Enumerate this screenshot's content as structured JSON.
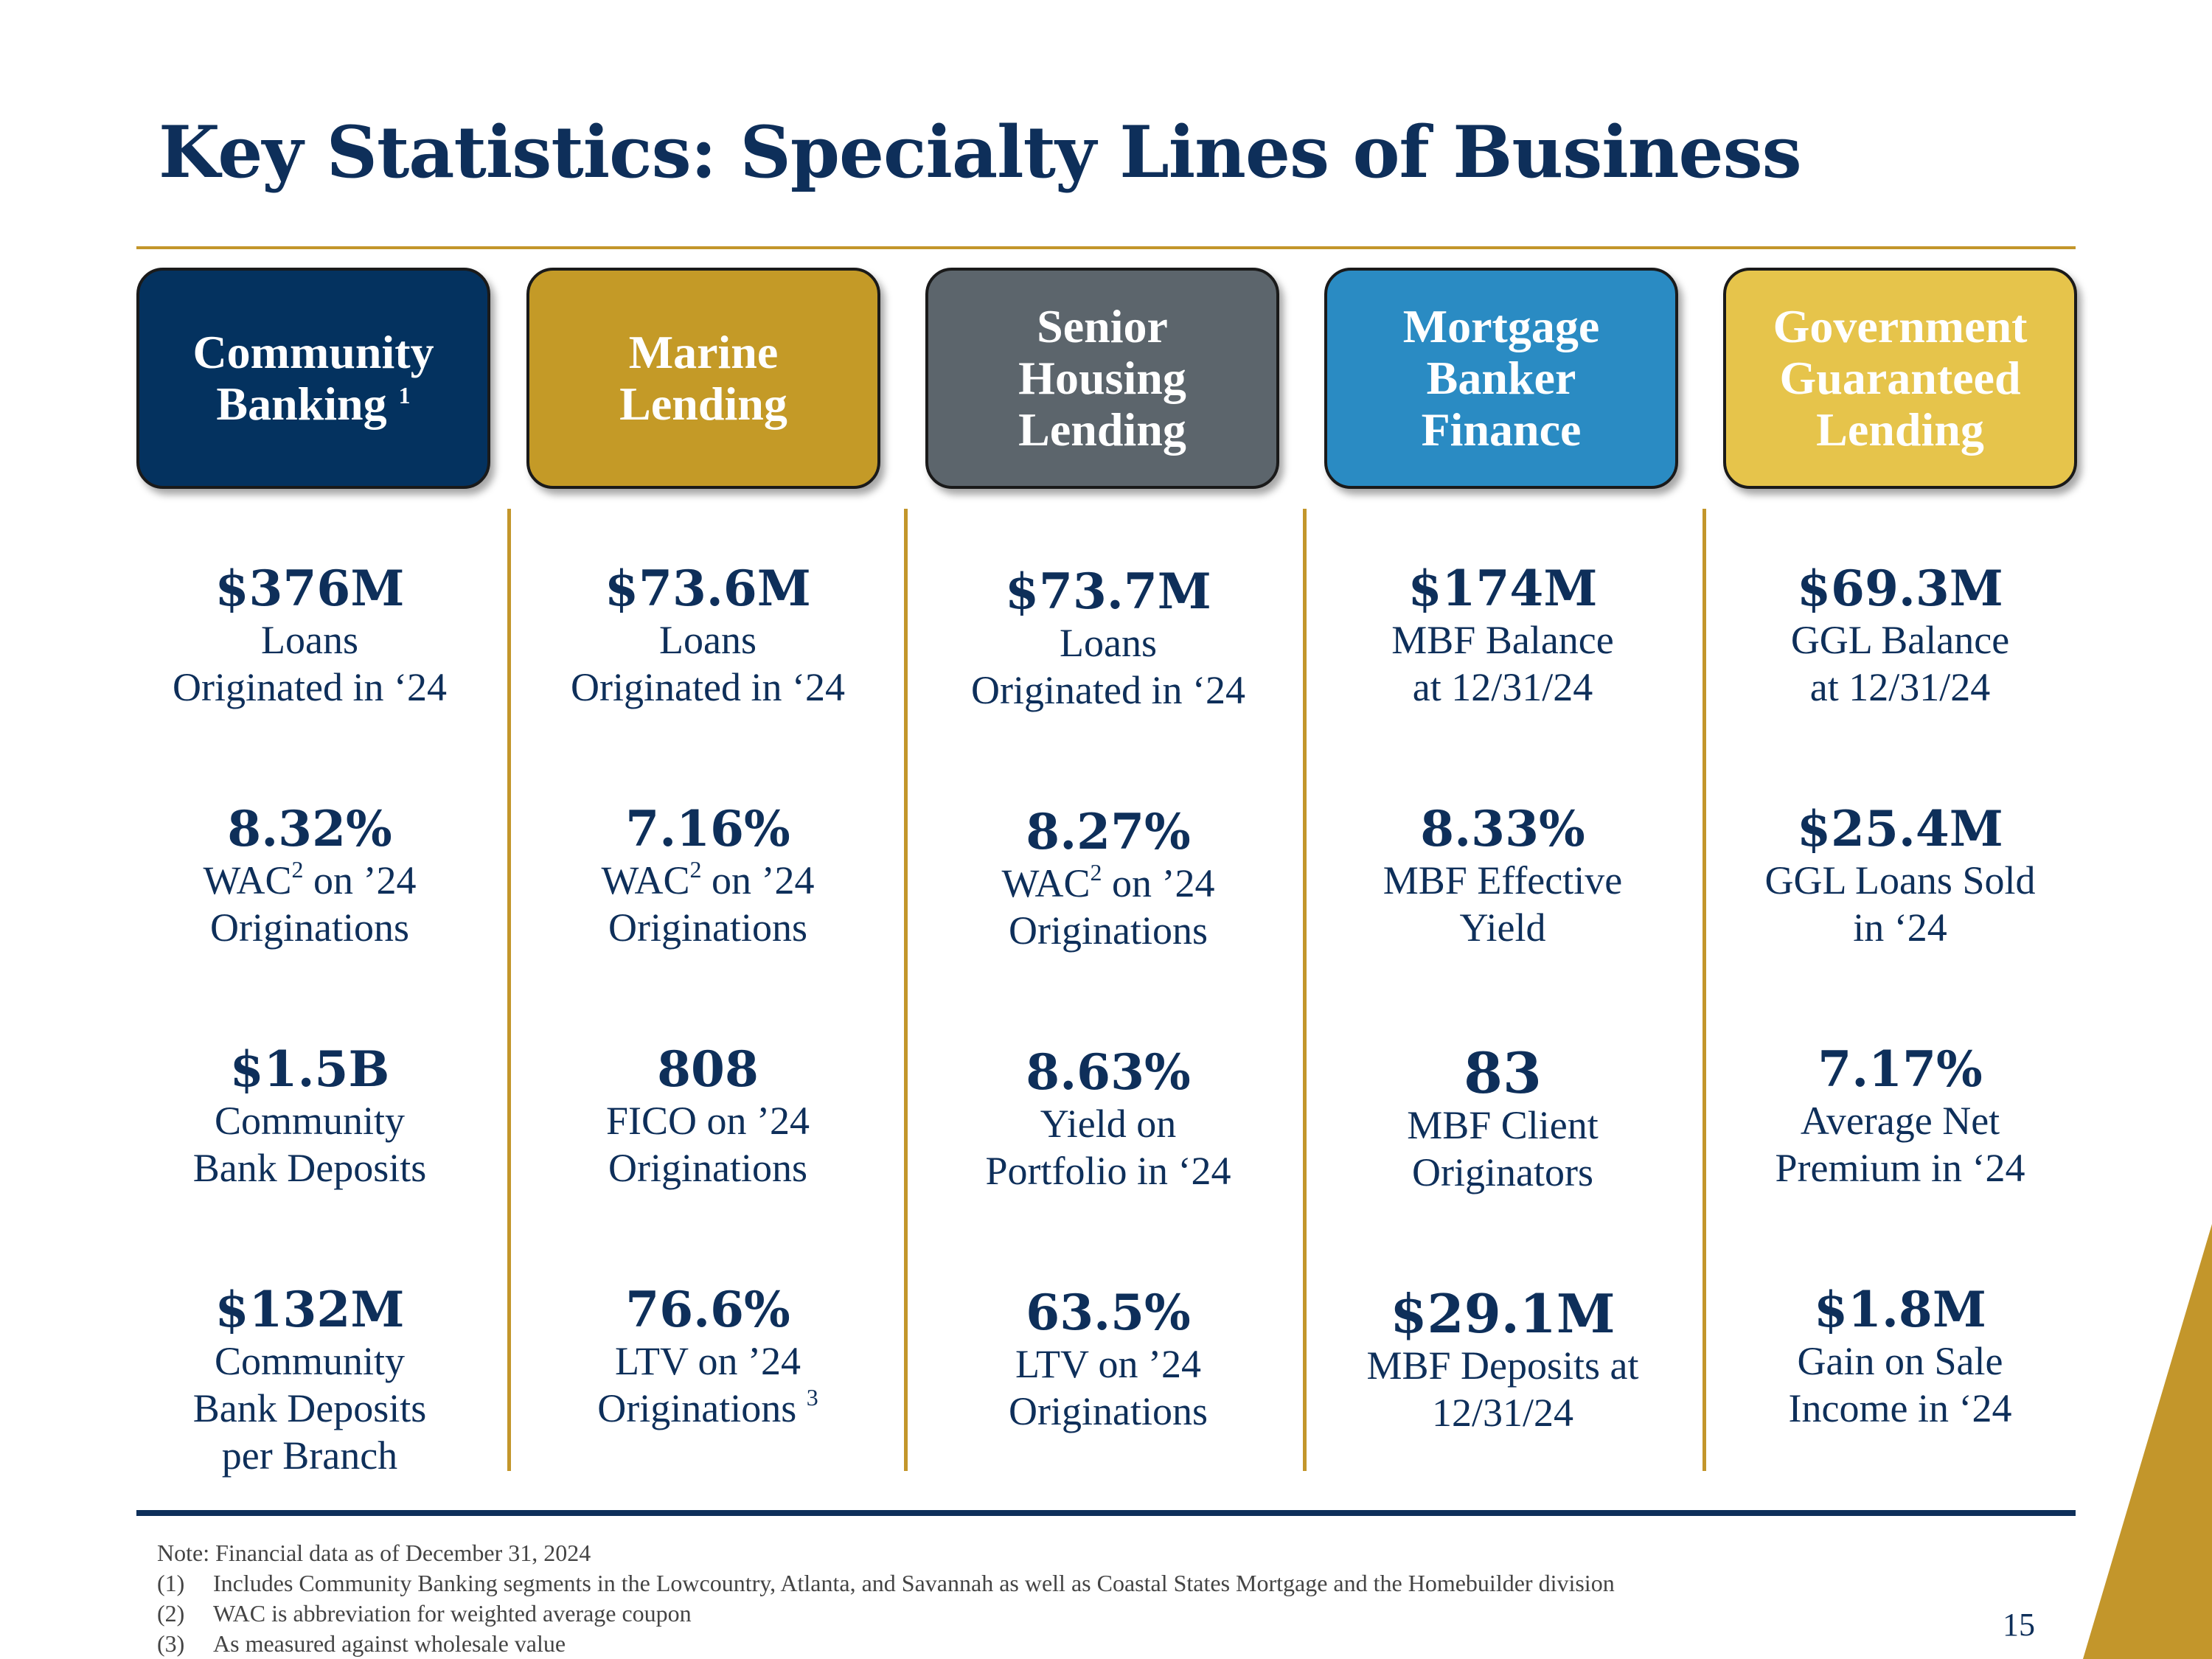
{
  "title": "Key Statistics:  Specialty Lines of Business",
  "colors": {
    "navy": "#0e2f5a",
    "gold_rule": "#c3962b",
    "community_banking": "#04325f",
    "marine_lending": "#c49a27",
    "senior_housing": "#5c656c",
    "mortgage_banker": "#2a8bc3",
    "government_guaranteed": "#e6c44b"
  },
  "columns": [
    {
      "header": "Community\nBanking",
      "header_footnote": "1",
      "stats": [
        {
          "value": "$376M",
          "label": "Loans\nOriginated in ‘24"
        },
        {
          "value": "8.32%",
          "label_parts": [
            "WAC",
            "2",
            " on ’24\nOriginations"
          ]
        },
        {
          "value": "$1.5B",
          "label": "Community\nBank Deposits"
        },
        {
          "value": "$132M",
          "label": "Community\nBank Deposits\nper Branch"
        }
      ]
    },
    {
      "header": "Marine\nLending",
      "stats": [
        {
          "value": "$73.6M",
          "label": "Loans\nOriginated in ‘24"
        },
        {
          "value": "7.16%",
          "label_parts": [
            "WAC",
            "2",
            " on ’24\nOriginations"
          ]
        },
        {
          "value": "808",
          "label": "FICO on ’24\nOriginations"
        },
        {
          "value": "76.6%",
          "label": "LTV on ’24\nOriginations",
          "label_footnote": "3"
        }
      ]
    },
    {
      "header": "Senior\nHousing\nLending",
      "stats": [
        {
          "value": "$73.7M",
          "label": "Loans\nOriginated in ‘24"
        },
        {
          "value": "8.27%",
          "label_parts": [
            "WAC",
            "2",
            " on ’24\nOriginations"
          ]
        },
        {
          "value": "8.63%",
          "label": "Yield on\nPortfolio in ‘24"
        },
        {
          "value": "63.5%",
          "label": "LTV on ’24\nOriginations"
        }
      ]
    },
    {
      "header": "Mortgage\nBanker\nFinance",
      "stats": [
        {
          "value": "$174M",
          "label": "MBF Balance\nat 12/31/24"
        },
        {
          "value": "8.33%",
          "label": "MBF Effective\nYield"
        },
        {
          "value": "83",
          "label": "MBF Client\nOriginators"
        },
        {
          "value": "$29.1M",
          "label": "MBF Deposits at\n12/31/24"
        }
      ]
    },
    {
      "header": "Government\nGuaranteed\nLending",
      "stats": [
        {
          "value": "$69.3M",
          "label": "GGL Balance\nat 12/31/24"
        },
        {
          "value": "$25.4M",
          "label": "GGL Loans Sold\nin ‘24"
        },
        {
          "value": "7.17%",
          "label": "Average Net\nPremium in ‘24"
        },
        {
          "value": "$1.8M",
          "label": "Gain on Sale\nIncome in ‘24"
        }
      ]
    }
  ],
  "notes": {
    "intro": "Note:  Financial data as of December 31, 2024",
    "items": [
      {
        "num": "(1)",
        "text": "Includes Community Banking segments in the Lowcountry, Atlanta, and Savannah as well as Coastal States Mortgage and the Homebuilder division"
      },
      {
        "num": "(2)",
        "text": "WAC is abbreviation for weighted average coupon"
      },
      {
        "num": "(3)",
        "text": "As measured against wholesale value"
      }
    ]
  },
  "page_number": "15"
}
